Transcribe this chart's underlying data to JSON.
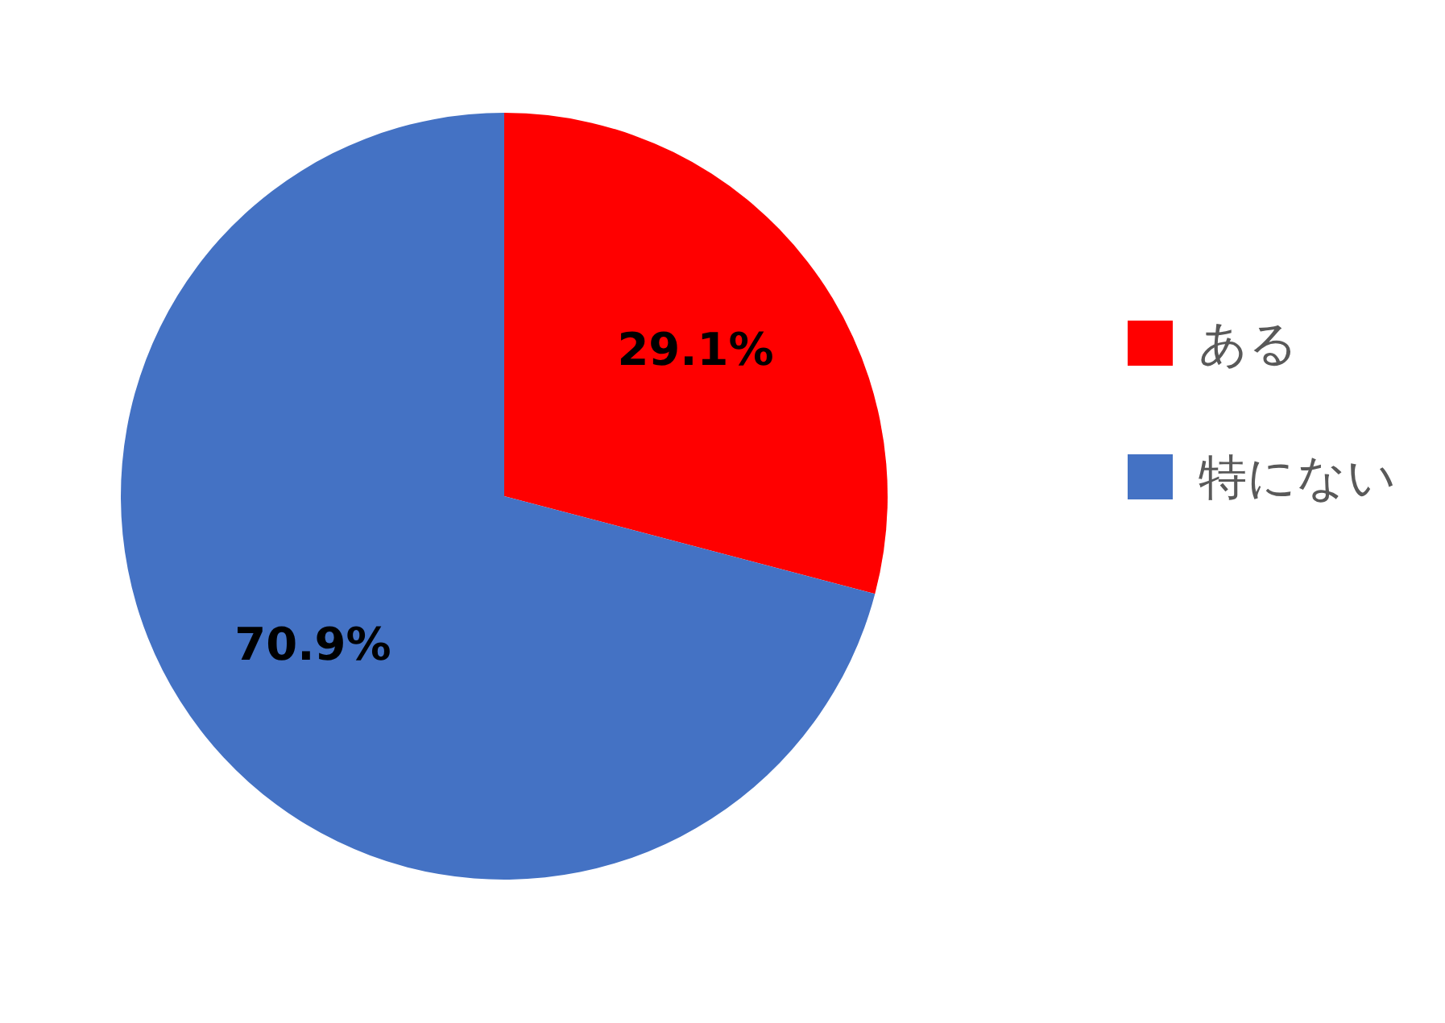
{
  "chart_data": {
    "type": "pie",
    "categories": [
      "ある",
      "特にない"
    ],
    "values": [
      29.1,
      70.9
    ],
    "colors": [
      "#ff0000",
      "#4472c4"
    ],
    "value_labels": [
      "29.1%",
      "70.9%"
    ],
    "legend": "right"
  }
}
